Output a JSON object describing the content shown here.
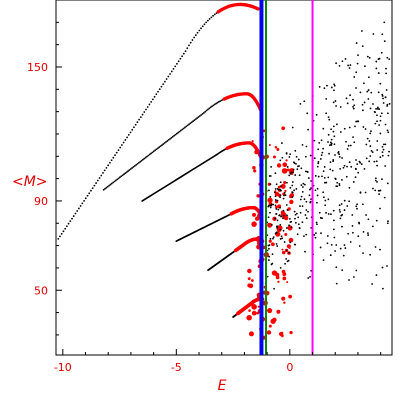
{
  "chart_data": {
    "type": "scatter",
    "title": "",
    "xlabel": "E",
    "ylabel": "<M>",
    "xlim": [
      -10.3,
      4.5
    ],
    "ylim": [
      21,
      180
    ],
    "x_ticks": [
      -10,
      -5,
      0
    ],
    "x_tick_labels": [
      "-10",
      "-5",
      "0"
    ],
    "y_ticks": [
      50,
      90,
      150
    ],
    "y_tick_labels": [
      "50",
      "90",
      "150"
    ],
    "grid": false,
    "legend": "none",
    "colors": {
      "frame": "#000000",
      "labels": "#e00000",
      "regular_points": "#000000",
      "highlight_points": "#ff0000",
      "line_blue": "#0000ee",
      "line_green": "#008800",
      "line_magenta": "#ff00ff"
    },
    "vertical_lines": [
      {
        "x": -1.25,
        "color": "#0000ee"
      },
      {
        "x": -1.05,
        "color": "#008800"
      },
      {
        "x": 1.0,
        "color": "#ff00ff"
      }
    ],
    "curves": [
      {
        "start": [
          -10.2,
          73
        ],
        "peak": [
          -2.2,
          178
        ],
        "end": [
          -1.4,
          176
        ]
      },
      {
        "start": [
          -8.2,
          95
        ],
        "peak": [
          -1.9,
          138
        ],
        "end": [
          -1.3,
          131
        ]
      },
      {
        "start": [
          -6.5,
          90
        ],
        "peak": [
          -1.8,
          116
        ],
        "end": [
          -1.3,
          110
        ]
      },
      {
        "start": [
          -5.0,
          72
        ],
        "peak": [
          -1.6,
          87
        ],
        "end": [
          -1.3,
          84
        ]
      },
      {
        "start": [
          -3.6,
          59
        ],
        "peak": [
          -1.4,
          73
        ],
        "end": [
          -1.2,
          72
        ]
      },
      {
        "start": [
          -2.5,
          38
        ],
        "peak": [
          -1.3,
          46
        ],
        "end": [
          -1.2,
          46
        ]
      }
    ]
  }
}
